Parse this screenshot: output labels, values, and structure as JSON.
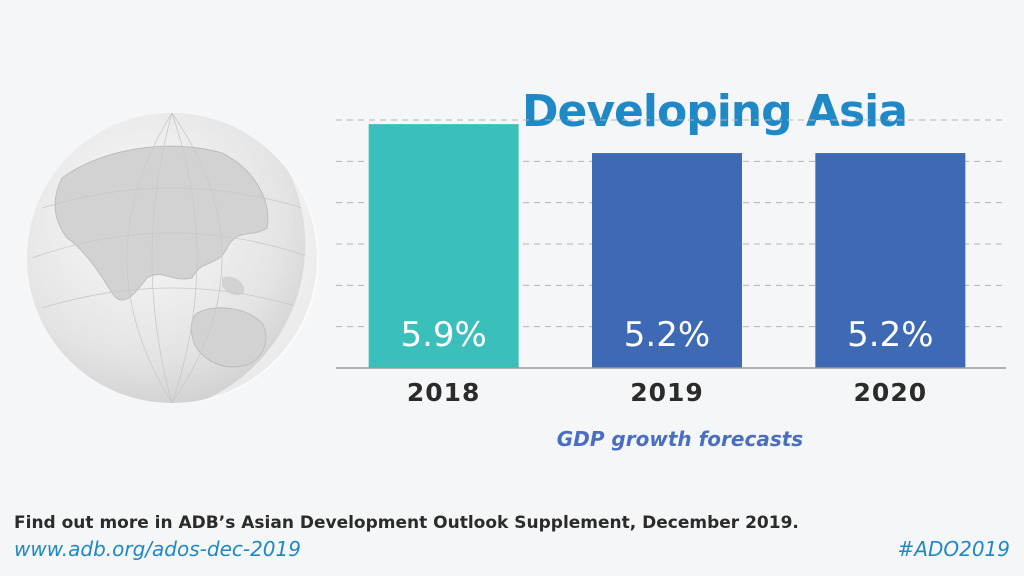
{
  "title": "Developing Asia",
  "footer": {
    "text": "Find out more in ADB’s Asian Development Outlook Supplement, December 2019.",
    "link": "www.adb.org/ados-dec-2019",
    "hashtag": "#ADO2019"
  },
  "colors": {
    "accent": "#1f88c7",
    "bar_2018": "#3bbfba",
    "bar_forecast": "#3e69b4",
    "xlabel": "#4a6fc0"
  },
  "chart_data": {
    "type": "bar",
    "categories": [
      "2018",
      "2019",
      "2020"
    ],
    "values": [
      5.9,
      5.2,
      5.2
    ],
    "data_labels": [
      "5.9%",
      "5.2%",
      "5.2%"
    ],
    "bar_colors": [
      "#3bbfba",
      "#3e69b4",
      "#3e69b4"
    ],
    "title": "Developing Asia",
    "xlabel": "GDP growth forecasts",
    "ylabel": "",
    "ylim": [
      0,
      6
    ],
    "grid": true,
    "legend": "none"
  }
}
